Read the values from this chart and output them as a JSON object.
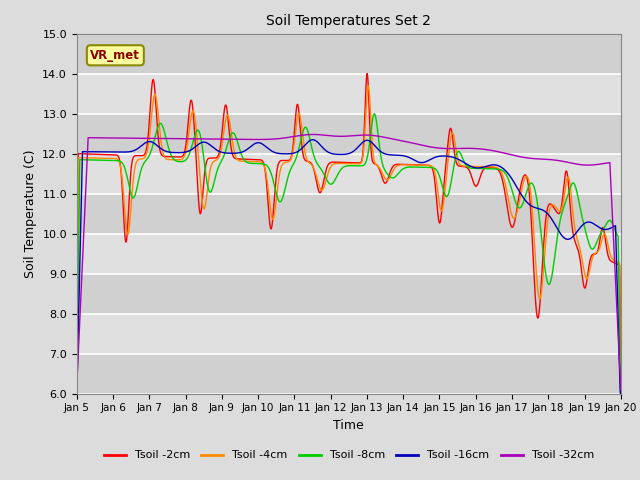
{
  "title": "Soil Temperatures Set 2",
  "xlabel": "Time",
  "ylabel": "Soil Temperature (C)",
  "ylim": [
    6.0,
    15.0
  ],
  "yticks": [
    6.0,
    7.0,
    8.0,
    9.0,
    10.0,
    11.0,
    12.0,
    13.0,
    14.0,
    15.0
  ],
  "background_color": "#dcdcdc",
  "plot_bg_color": "#dcdcdc",
  "grid_color": "#ffffff",
  "series_colors": [
    "#ff0000",
    "#ff8800",
    "#00cc00",
    "#0000bb",
    "#aa00bb"
  ],
  "series_labels": [
    "Tsoil -2cm",
    "Tsoil -4cm",
    "Tsoil -8cm",
    "Tsoil -16cm",
    "Tsoil -32cm"
  ],
  "xticklabels": [
    "Jan 5",
    "Jan 6",
    "Jan 7",
    "Jan 8",
    "Jan 9",
    "Jan 10",
    "Jan 11",
    "Jan 12",
    "Jan 13",
    "Jan 14",
    "Jan 15",
    "Jan 16",
    "Jan 17",
    "Jan 18",
    "Jan 19",
    "Jan 20"
  ],
  "annotation_text": "VR_met",
  "figsize": [
    6.4,
    4.8
  ],
  "dpi": 100
}
